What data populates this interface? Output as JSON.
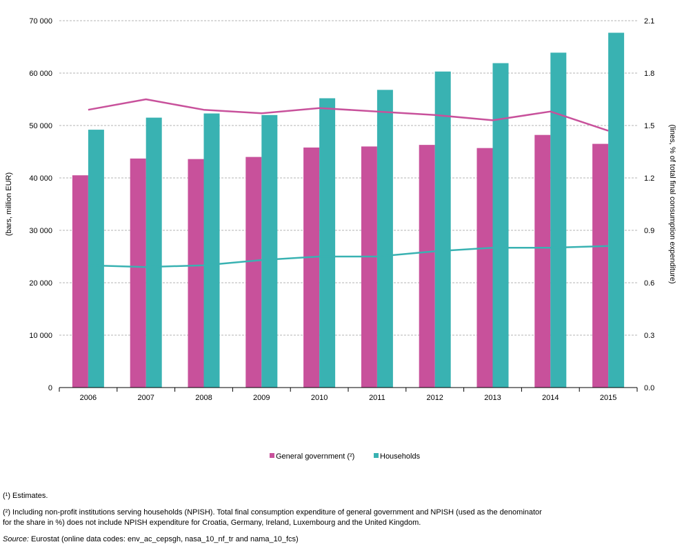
{
  "chart_data": {
    "type": "bar",
    "categories": [
      "2006",
      "2007",
      "2008",
      "2009",
      "2010",
      "2011",
      "2012",
      "2013",
      "2014",
      "2015"
    ],
    "series": [
      {
        "name": "General government (²)",
        "chart": "bar",
        "axis": "left",
        "color": "#c8519b",
        "values": [
          40500,
          43700,
          43600,
          44000,
          45800,
          46000,
          46300,
          45700,
          48200,
          46500
        ]
      },
      {
        "name": "Households",
        "chart": "bar",
        "axis": "left",
        "color": "#39b2b2",
        "values": [
          49200,
          51500,
          52300,
          52000,
          55200,
          56800,
          60300,
          61900,
          63900,
          67700
        ]
      },
      {
        "chart": "line",
        "axis": "right",
        "color": "#c8519b",
        "values": [
          1.59,
          1.65,
          1.59,
          1.57,
          1.6,
          1.58,
          1.56,
          1.53,
          1.58,
          1.47
        ]
      },
      {
        "chart": "line",
        "axis": "right",
        "color": "#39b2b2",
        "values": [
          0.7,
          0.69,
          0.7,
          0.73,
          0.75,
          0.75,
          0.78,
          0.8,
          0.8,
          0.81
        ]
      }
    ],
    "ylabel": "(bars, million EUR)",
    "y2label": "(lines, % of total final consumption expenditure)",
    "ylim": [
      0,
      70000
    ],
    "y2lim": [
      0,
      2.1
    ],
    "yticks": [
      "0",
      "10 000",
      "20 000",
      "30 000",
      "40 000",
      "50 000",
      "60 000",
      "70 000"
    ],
    "y2ticks": [
      "0.0",
      "0.3",
      "0.6",
      "0.9",
      "1.2",
      "1.5",
      "1.8",
      "2.1"
    ],
    "grid": true,
    "legend_position": "bottom-center",
    "gridline_color": "#b3b3b3",
    "axis_color": "#000000"
  },
  "notes": {
    "estimates": "(¹) Estimates.",
    "npish_line1": "(²) Including non-profit institutions serving households (NPISH). Total final consumption expenditure of general government and NPISH (used as the denominator",
    "npish_line2": "for the share in %) does not include NPISH expenditure for Croatia, Germany, Ireland, Luxembourg and the United Kingdom.",
    "source_label": "Source:",
    "source_text": " Eurostat (online data codes: env_ac_cepsgh, nasa_10_nf_tr and nama_10_fcs)"
  }
}
